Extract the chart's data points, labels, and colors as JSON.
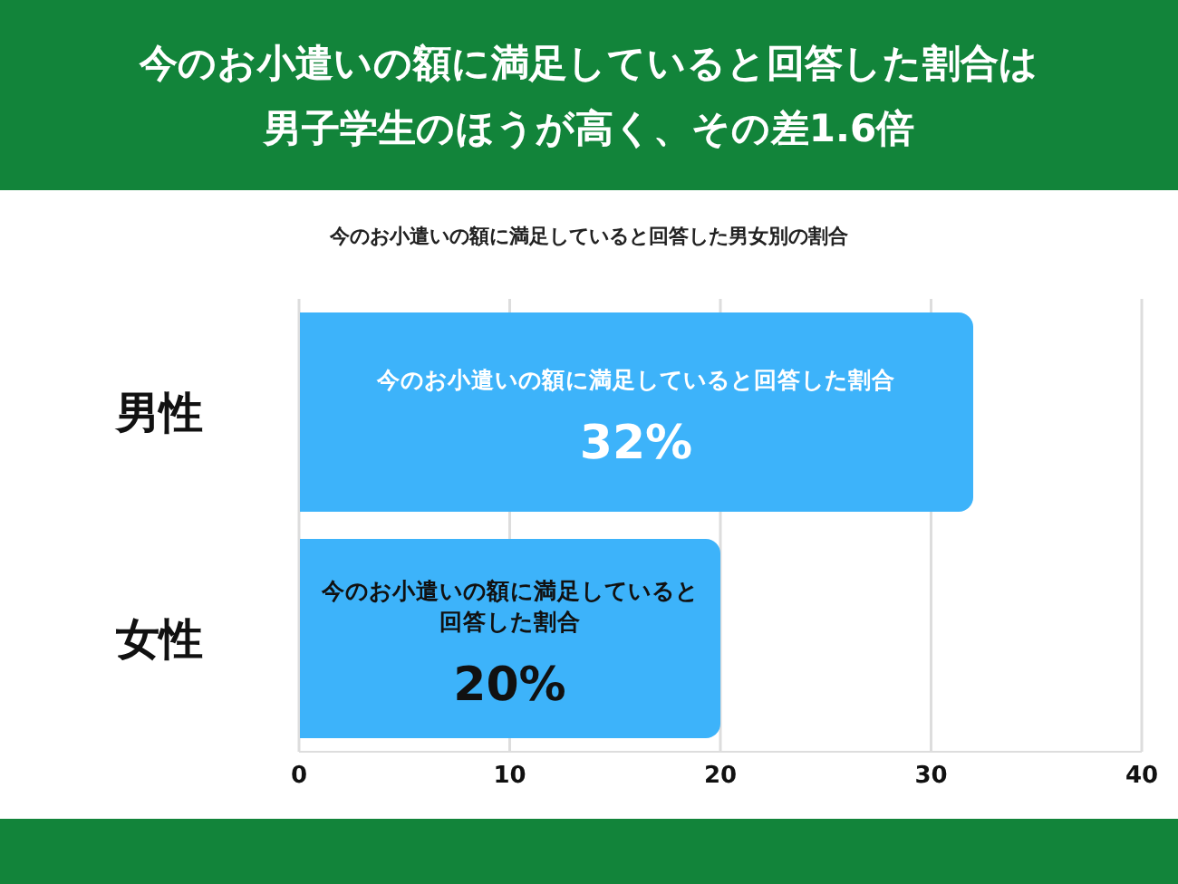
{
  "chart_data": {
    "type": "bar",
    "orientation": "horizontal",
    "title": "今のお小遣いの額に満足していると回答した割合は男子学生のほうが高く、その差1.6倍",
    "subtitle": "今のお小遣いの額に満足していると回答した男女別の割合",
    "categories": [
      "男性",
      "女性"
    ],
    "series": [
      {
        "color": "#3db3fa",
        "values": [
          32,
          20
        ],
        "value_labels": [
          "32%",
          "20%"
        ]
      }
    ],
    "annotations": [
      "今のお小遣いの額に満足していると回答した割合",
      "今のお小遣いの額に満足していると回答した割合"
    ],
    "xlim": [
      0,
      40
    ],
    "xticks": [
      0,
      10,
      20,
      30,
      40
    ],
    "grid": "x"
  }
}
